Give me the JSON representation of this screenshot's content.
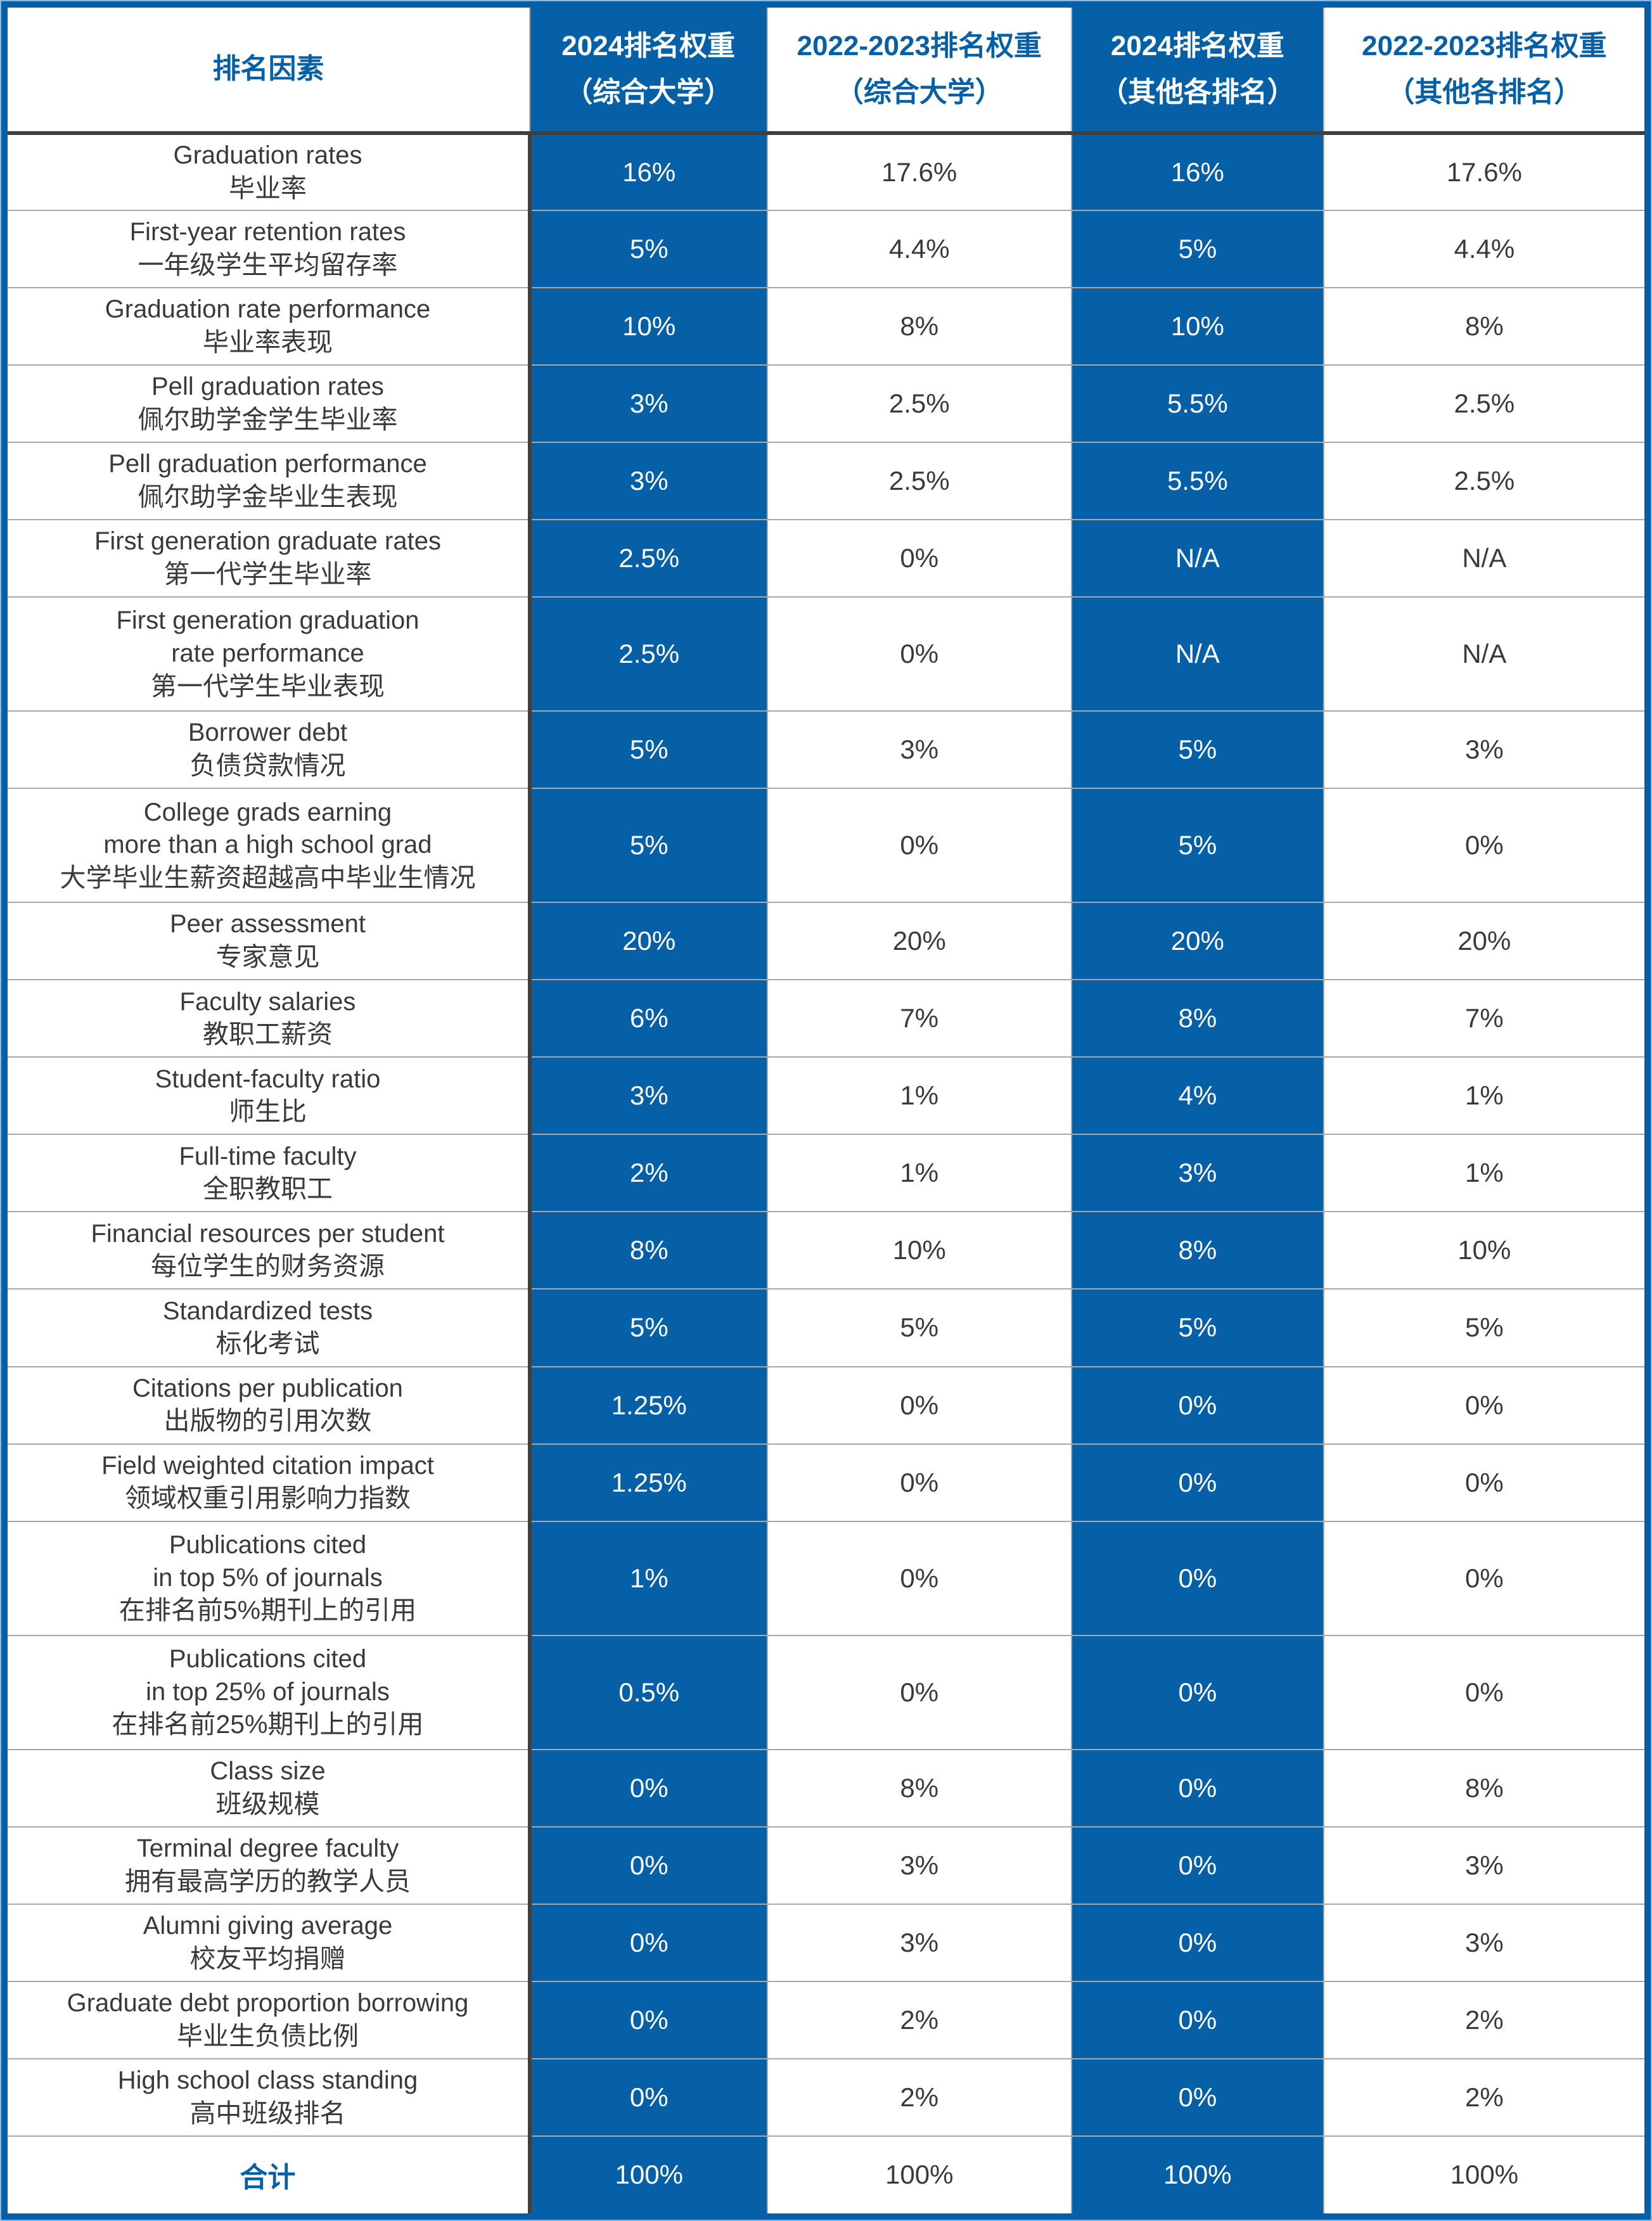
{
  "colors": {
    "accent_blue": "#0560A8",
    "frame_light_blue": "#93B7DB",
    "divider_dark": "#3F3F3F",
    "divider_light": "#A8A8A8",
    "text_dark": "#3A3A3A"
  },
  "header": {
    "factor_label": "排名因素",
    "cols": [
      {
        "line1": "2024排名权重",
        "line2": "（综合大学）",
        "theme": "blue"
      },
      {
        "line1": "2022-2023排名权重",
        "line2": "（综合大学）",
        "theme": "white"
      },
      {
        "line1": "2024排名权重",
        "line2": "（其他各排名）",
        "theme": "blue"
      },
      {
        "line1": "2022-2023排名权重",
        "line2": "（其他各排名）",
        "theme": "white"
      }
    ]
  },
  "chart_data": {
    "type": "table",
    "title": "",
    "columns": [
      "排名因素",
      "2024排名权重（综合大学）",
      "2022-2023排名权重（综合大学）",
      "2024排名权重（其他各排名）",
      "2022-2023排名权重（其他各排名）"
    ],
    "rows": [
      {
        "en_lines": [
          "Graduation rates"
        ],
        "zh": "毕业率",
        "values": [
          "16%",
          "17.6%",
          "16%",
          "17.6%"
        ]
      },
      {
        "en_lines": [
          "First-year retention rates"
        ],
        "zh": "一年级学生平均留存率",
        "values": [
          "5%",
          "4.4%",
          "5%",
          "4.4%"
        ]
      },
      {
        "en_lines": [
          "Graduation rate performance"
        ],
        "zh": "毕业率表现",
        "values": [
          "10%",
          "8%",
          "10%",
          "8%"
        ]
      },
      {
        "en_lines": [
          "Pell graduation rates"
        ],
        "zh": "佩尔助学金学生毕业率",
        "values": [
          "3%",
          "2.5%",
          "5.5%",
          "2.5%"
        ]
      },
      {
        "en_lines": [
          "Pell graduation performance"
        ],
        "zh": "佩尔助学金毕业生表现",
        "values": [
          "3%",
          "2.5%",
          "5.5%",
          "2.5%"
        ]
      },
      {
        "en_lines": [
          "First generation graduate rates"
        ],
        "zh": "第一代学生毕业率",
        "values": [
          "2.5%",
          "0%",
          "N/A",
          "N/A"
        ]
      },
      {
        "en_lines": [
          "First generation graduation",
          "rate performance"
        ],
        "zh": "第一代学生毕业表现",
        "values": [
          "2.5%",
          "0%",
          "N/A",
          "N/A"
        ]
      },
      {
        "en_lines": [
          "Borrower debt"
        ],
        "zh": "负债贷款情况",
        "values": [
          "5%",
          "3%",
          "5%",
          "3%"
        ]
      },
      {
        "en_lines": [
          "College grads earning",
          "more than a high school grad"
        ],
        "zh": "大学毕业生薪资超越高中毕业生情况",
        "values": [
          "5%",
          "0%",
          "5%",
          "0%"
        ]
      },
      {
        "en_lines": [
          "Peer assessment"
        ],
        "zh": "专家意见",
        "values": [
          "20%",
          "20%",
          "20%",
          "20%"
        ]
      },
      {
        "en_lines": [
          "Faculty salaries"
        ],
        "zh": "教职工薪资",
        "values": [
          "6%",
          "7%",
          "8%",
          "7%"
        ]
      },
      {
        "en_lines": [
          "Student-faculty ratio"
        ],
        "zh": "师生比",
        "values": [
          "3%",
          "1%",
          "4%",
          "1%"
        ]
      },
      {
        "en_lines": [
          "Full-time faculty"
        ],
        "zh": "全职教职工",
        "values": [
          "2%",
          "1%",
          "3%",
          "1%"
        ]
      },
      {
        "en_lines": [
          "Financial resources per student"
        ],
        "zh": "每位学生的财务资源",
        "values": [
          "8%",
          "10%",
          "8%",
          "10%"
        ]
      },
      {
        "en_lines": [
          "Standardized tests"
        ],
        "zh": "标化考试",
        "values": [
          "5%",
          "5%",
          "5%",
          "5%"
        ]
      },
      {
        "en_lines": [
          "Citations per publication"
        ],
        "zh": "出版物的引用次数",
        "values": [
          "1.25%",
          "0%",
          "0%",
          "0%"
        ]
      },
      {
        "en_lines": [
          "Field weighted citation impact"
        ],
        "zh": "领域权重引用影响力指数",
        "values": [
          "1.25%",
          "0%",
          "0%",
          "0%"
        ]
      },
      {
        "en_lines": [
          "Publications cited",
          "in top 5% of journals"
        ],
        "zh": "在排名前5%期刊上的引用",
        "values": [
          "1%",
          "0%",
          "0%",
          "0%"
        ]
      },
      {
        "en_lines": [
          "Publications cited",
          "in top 25% of journals"
        ],
        "zh": "在排名前25%期刊上的引用",
        "values": [
          "0.5%",
          "0%",
          "0%",
          "0%"
        ]
      },
      {
        "en_lines": [
          "Class size"
        ],
        "zh": "班级规模",
        "values": [
          "0%",
          "8%",
          "0%",
          "8%"
        ]
      },
      {
        "en_lines": [
          "Terminal degree faculty"
        ],
        "zh": "拥有最高学历的教学人员",
        "values": [
          "0%",
          "3%",
          "0%",
          "3%"
        ]
      },
      {
        "en_lines": [
          "Alumni giving average"
        ],
        "zh": "校友平均捐赠",
        "values": [
          "0%",
          "3%",
          "0%",
          "3%"
        ]
      },
      {
        "en_lines": [
          "Graduate debt proportion borrowing"
        ],
        "zh": "毕业生负债比例",
        "values": [
          "0%",
          "2%",
          "0%",
          "2%"
        ]
      },
      {
        "en_lines": [
          "High school class standing"
        ],
        "zh": "高中班级排名",
        "values": [
          "0%",
          "2%",
          "0%",
          "2%"
        ]
      }
    ],
    "total_row": {
      "label": "合计",
      "values": [
        "100%",
        "100%",
        "100%",
        "100%"
      ]
    }
  }
}
